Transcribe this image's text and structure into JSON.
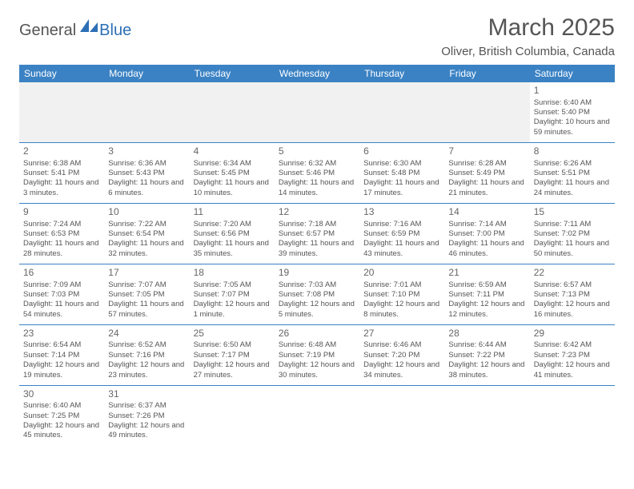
{
  "brand": {
    "part1": "General",
    "part2": "Blue"
  },
  "title": "March 2025",
  "location": "Oliver, British Columbia, Canada",
  "colors": {
    "header_bg": "#3b82c4",
    "header_text": "#ffffff",
    "text": "#555555",
    "brand_blue": "#2c6fb5",
    "border": "#3b82c4",
    "blank_bg": "#f1f1f1"
  },
  "weekdays": [
    "Sunday",
    "Monday",
    "Tuesday",
    "Wednesday",
    "Thursday",
    "Friday",
    "Saturday"
  ],
  "weeks": [
    [
      null,
      null,
      null,
      null,
      null,
      null,
      {
        "n": "1",
        "sr": "6:40 AM",
        "ss": "5:40 PM",
        "dl": "10 hours and 59 minutes."
      }
    ],
    [
      {
        "n": "2",
        "sr": "6:38 AM",
        "ss": "5:41 PM",
        "dl": "11 hours and 3 minutes."
      },
      {
        "n": "3",
        "sr": "6:36 AM",
        "ss": "5:43 PM",
        "dl": "11 hours and 6 minutes."
      },
      {
        "n": "4",
        "sr": "6:34 AM",
        "ss": "5:45 PM",
        "dl": "11 hours and 10 minutes."
      },
      {
        "n": "5",
        "sr": "6:32 AM",
        "ss": "5:46 PM",
        "dl": "11 hours and 14 minutes."
      },
      {
        "n": "6",
        "sr": "6:30 AM",
        "ss": "5:48 PM",
        "dl": "11 hours and 17 minutes."
      },
      {
        "n": "7",
        "sr": "6:28 AM",
        "ss": "5:49 PM",
        "dl": "11 hours and 21 minutes."
      },
      {
        "n": "8",
        "sr": "6:26 AM",
        "ss": "5:51 PM",
        "dl": "11 hours and 24 minutes."
      }
    ],
    [
      {
        "n": "9",
        "sr": "7:24 AM",
        "ss": "6:53 PM",
        "dl": "11 hours and 28 minutes."
      },
      {
        "n": "10",
        "sr": "7:22 AM",
        "ss": "6:54 PM",
        "dl": "11 hours and 32 minutes."
      },
      {
        "n": "11",
        "sr": "7:20 AM",
        "ss": "6:56 PM",
        "dl": "11 hours and 35 minutes."
      },
      {
        "n": "12",
        "sr": "7:18 AM",
        "ss": "6:57 PM",
        "dl": "11 hours and 39 minutes."
      },
      {
        "n": "13",
        "sr": "7:16 AM",
        "ss": "6:59 PM",
        "dl": "11 hours and 43 minutes."
      },
      {
        "n": "14",
        "sr": "7:14 AM",
        "ss": "7:00 PM",
        "dl": "11 hours and 46 minutes."
      },
      {
        "n": "15",
        "sr": "7:11 AM",
        "ss": "7:02 PM",
        "dl": "11 hours and 50 minutes."
      }
    ],
    [
      {
        "n": "16",
        "sr": "7:09 AM",
        "ss": "7:03 PM",
        "dl": "11 hours and 54 minutes."
      },
      {
        "n": "17",
        "sr": "7:07 AM",
        "ss": "7:05 PM",
        "dl": "11 hours and 57 minutes."
      },
      {
        "n": "18",
        "sr": "7:05 AM",
        "ss": "7:07 PM",
        "dl": "12 hours and 1 minute."
      },
      {
        "n": "19",
        "sr": "7:03 AM",
        "ss": "7:08 PM",
        "dl": "12 hours and 5 minutes."
      },
      {
        "n": "20",
        "sr": "7:01 AM",
        "ss": "7:10 PM",
        "dl": "12 hours and 8 minutes."
      },
      {
        "n": "21",
        "sr": "6:59 AM",
        "ss": "7:11 PM",
        "dl": "12 hours and 12 minutes."
      },
      {
        "n": "22",
        "sr": "6:57 AM",
        "ss": "7:13 PM",
        "dl": "12 hours and 16 minutes."
      }
    ],
    [
      {
        "n": "23",
        "sr": "6:54 AM",
        "ss": "7:14 PM",
        "dl": "12 hours and 19 minutes."
      },
      {
        "n": "24",
        "sr": "6:52 AM",
        "ss": "7:16 PM",
        "dl": "12 hours and 23 minutes."
      },
      {
        "n": "25",
        "sr": "6:50 AM",
        "ss": "7:17 PM",
        "dl": "12 hours and 27 minutes."
      },
      {
        "n": "26",
        "sr": "6:48 AM",
        "ss": "7:19 PM",
        "dl": "12 hours and 30 minutes."
      },
      {
        "n": "27",
        "sr": "6:46 AM",
        "ss": "7:20 PM",
        "dl": "12 hours and 34 minutes."
      },
      {
        "n": "28",
        "sr": "6:44 AM",
        "ss": "7:22 PM",
        "dl": "12 hours and 38 minutes."
      },
      {
        "n": "29",
        "sr": "6:42 AM",
        "ss": "7:23 PM",
        "dl": "12 hours and 41 minutes."
      }
    ],
    [
      {
        "n": "30",
        "sr": "6:40 AM",
        "ss": "7:25 PM",
        "dl": "12 hours and 45 minutes."
      },
      {
        "n": "31",
        "sr": "6:37 AM",
        "ss": "7:26 PM",
        "dl": "12 hours and 49 minutes."
      },
      null,
      null,
      null,
      null,
      null
    ]
  ],
  "labels": {
    "sunrise": "Sunrise:",
    "sunset": "Sunset:",
    "daylight": "Daylight:"
  }
}
